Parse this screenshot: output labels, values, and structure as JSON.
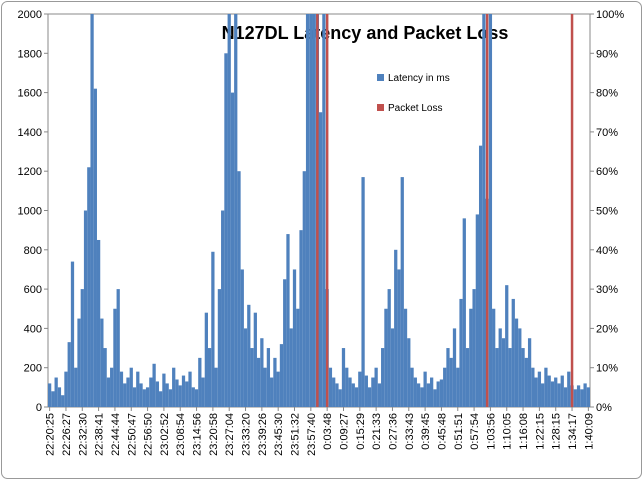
{
  "chart_data": {
    "type": "bar",
    "title": "N127DL Latency and Packet Loss",
    "categories": [
      "22:20:25",
      null,
      null,
      null,
      null,
      "22:26:27",
      null,
      null,
      null,
      null,
      "22:32:30",
      null,
      null,
      null,
      null,
      "22:38:41",
      null,
      null,
      null,
      null,
      "22:44:44",
      null,
      null,
      null,
      null,
      "22:50:47",
      null,
      null,
      null,
      null,
      "22:56:50",
      null,
      null,
      null,
      null,
      "23:02:52",
      null,
      null,
      null,
      null,
      "23:08:54",
      null,
      null,
      null,
      null,
      "23:14:56",
      null,
      null,
      null,
      null,
      "23:20:58",
      null,
      null,
      null,
      null,
      "23:27:04",
      null,
      null,
      null,
      null,
      "23:33:20",
      null,
      null,
      null,
      null,
      "23:39:26",
      null,
      null,
      null,
      null,
      "23:45:30",
      null,
      null,
      null,
      null,
      "23:51:32",
      null,
      null,
      null,
      null,
      "23:57:40",
      null,
      null,
      null,
      null,
      "0:03:48",
      null,
      null,
      null,
      null,
      "0:09:27",
      null,
      null,
      null,
      null,
      "0:15:29",
      null,
      null,
      null,
      null,
      "0:21:33",
      null,
      null,
      null,
      null,
      "0:27:36",
      null,
      null,
      null,
      null,
      "0:33:43",
      null,
      null,
      null,
      null,
      "0:39:45",
      null,
      null,
      null,
      null,
      "0:45:48",
      null,
      null,
      null,
      null,
      "0:51:51",
      null,
      null,
      null,
      null,
      "0:57:54",
      null,
      null,
      null,
      null,
      "1:03:56",
      null,
      null,
      null,
      null,
      "1:10:05",
      null,
      null,
      null,
      null,
      "1:16:08",
      null,
      null,
      null,
      null,
      "1:22:15",
      null,
      null,
      null,
      null,
      "1:28:15",
      null,
      null,
      null,
      null,
      "1:34:17",
      null,
      null,
      null,
      null,
      "1:40:09"
    ],
    "series": [
      {
        "name": "Latency in ms",
        "color": "#4f81bd",
        "axis": "y",
        "values": [
          120,
          80,
          150,
          100,
          60,
          180,
          330,
          740,
          200,
          450,
          600,
          1000,
          1220,
          2000,
          1620,
          850,
          450,
          300,
          150,
          200,
          500,
          600,
          180,
          120,
          150,
          200,
          100,
          180,
          120,
          90,
          100,
          150,
          220,
          130,
          80,
          170,
          120,
          90,
          200,
          140,
          110,
          160,
          130,
          180,
          100,
          90,
          250,
          150,
          480,
          300,
          790,
          200,
          600,
          1000,
          1800,
          2000,
          1600,
          2000,
          1200,
          700,
          400,
          520,
          300,
          480,
          250,
          350,
          200,
          300,
          150,
          250,
          180,
          320,
          650,
          880,
          400,
          700,
          500,
          900,
          1200,
          2000,
          2000,
          2000,
          2000,
          1500,
          2000,
          600,
          200,
          150,
          120,
          90,
          300,
          200,
          150,
          120,
          100,
          180,
          1170,
          160,
          100,
          150,
          200,
          120,
          300,
          500,
          600,
          400,
          800,
          700,
          1170,
          500,
          350,
          200,
          150,
          120,
          100,
          180,
          120,
          150,
          90,
          130,
          140,
          200,
          300,
          250,
          400,
          200,
          550,
          960,
          300,
          500,
          600,
          980,
          1330,
          2000,
          1060,
          2000,
          500,
          300,
          400,
          350,
          620,
          300,
          550,
          450,
          400,
          300,
          250,
          350,
          200,
          150,
          180,
          120,
          200,
          160,
          130,
          150,
          120,
          160,
          100,
          180,
          110,
          90,
          110,
          90,
          120,
          100
        ]
      },
      {
        "name": "Packet Loss",
        "color": "#c0504d",
        "axis": "y2",
        "values": [
          0,
          0,
          0,
          0,
          0,
          0,
          0,
          0,
          0,
          0,
          0,
          0,
          0,
          0,
          0,
          0,
          0,
          0,
          0,
          0,
          0,
          0,
          0,
          0,
          0,
          0,
          0,
          0,
          0,
          0,
          0,
          0,
          0,
          0,
          0,
          0,
          0,
          0,
          0,
          0,
          0,
          0,
          0,
          0,
          0,
          0,
          0,
          0,
          0,
          0,
          0,
          0,
          0,
          0,
          0,
          0,
          0,
          0,
          0,
          0,
          0,
          0,
          0,
          0,
          0,
          0,
          0,
          0,
          0,
          0,
          0,
          0,
          0,
          0,
          0,
          0,
          0,
          0,
          0,
          0,
          0,
          0,
          100,
          0,
          0,
          100,
          0,
          0,
          0,
          0,
          0,
          0,
          0,
          0,
          0,
          0,
          0,
          0,
          0,
          0,
          0,
          0,
          0,
          0,
          0,
          0,
          0,
          0,
          0,
          0,
          0,
          0,
          0,
          0,
          0,
          0,
          0,
          0,
          0,
          0,
          0,
          0,
          0,
          0,
          0,
          0,
          0,
          0,
          0,
          0,
          0,
          0,
          0,
          0,
          100,
          0,
          0,
          0,
          0,
          0,
          0,
          0,
          0,
          0,
          0,
          0,
          0,
          0,
          0,
          0,
          0,
          0,
          0,
          0,
          0,
          0,
          0,
          0,
          0,
          0,
          100,
          0,
          0,
          0,
          0,
          0
        ]
      }
    ],
    "ylim": [
      0,
      2000
    ],
    "yticks": [
      0,
      200,
      400,
      600,
      800,
      1000,
      1200,
      1400,
      1600,
      1800,
      2000
    ],
    "y2lim": [
      0,
      100
    ],
    "y2ticks": [
      {
        "value": 0,
        "label": "0%"
      },
      {
        "value": 10,
        "label": "10%"
      },
      {
        "value": 20,
        "label": "20%"
      },
      {
        "value": 30,
        "label": "30%"
      },
      {
        "value": 40,
        "label": "40%"
      },
      {
        "value": 50,
        "label": "50%"
      },
      {
        "value": 60,
        "label": "60%"
      },
      {
        "value": 70,
        "label": "70%"
      },
      {
        "value": 80,
        "label": "80%"
      },
      {
        "value": 90,
        "label": "90%"
      },
      {
        "value": 100,
        "label": "100%"
      }
    ],
    "grid": false
  }
}
